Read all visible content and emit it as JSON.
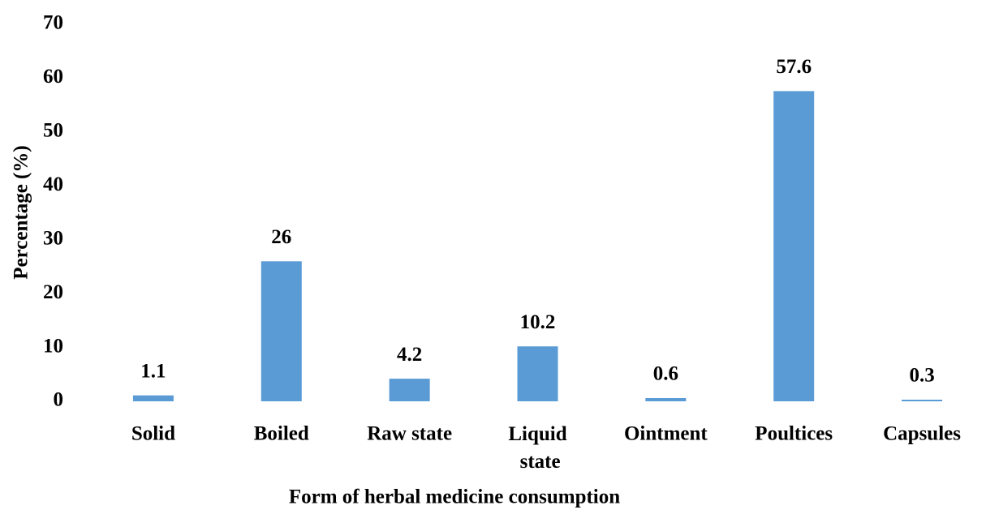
{
  "chart_data": {
    "type": "bar",
    "categories": [
      "Solid",
      "Boiled",
      "Raw state",
      "Liquid state",
      "Ointment",
      "Poultices",
      "Capsules"
    ],
    "values": [
      1.1,
      26,
      4.2,
      10.2,
      0.6,
      57.6,
      0.3
    ],
    "color": "#5b9bd5",
    "x_label": "Form of herbal medicine consumption",
    "y_label": "Percentage (%)",
    "ylim": [
      0,
      70
    ],
    "yticks": [
      0,
      10,
      20,
      30,
      40,
      50,
      60,
      70
    ],
    "grid": false
  }
}
